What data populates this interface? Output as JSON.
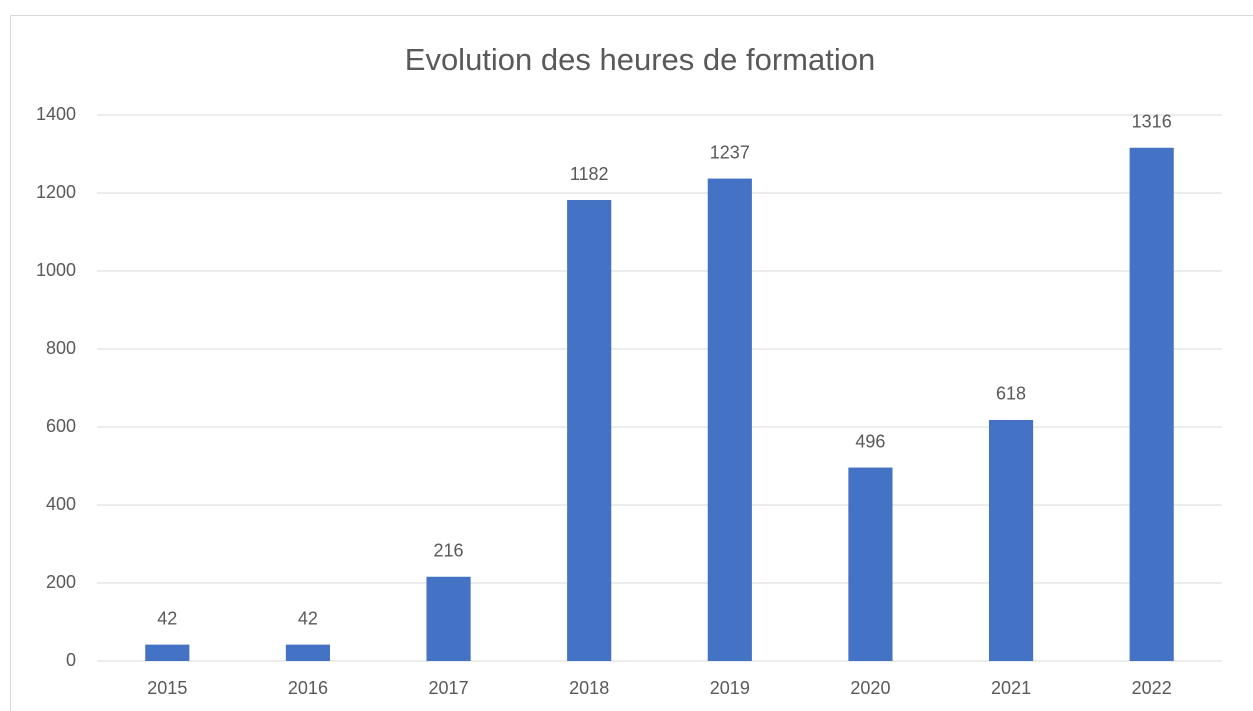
{
  "chart_data": {
    "type": "bar",
    "title": "Evolution des heures de formation",
    "categories": [
      "2015",
      "2016",
      "2017",
      "2018",
      "2019",
      "2020",
      "2021",
      "2022"
    ],
    "values": [
      42,
      42,
      216,
      1182,
      1237,
      496,
      618,
      1316
    ],
    "color": "#4472c4",
    "ylim": [
      0,
      1400
    ],
    "yticks": [
      0,
      200,
      400,
      600,
      800,
      1000,
      1200,
      1400
    ],
    "grid": true
  }
}
